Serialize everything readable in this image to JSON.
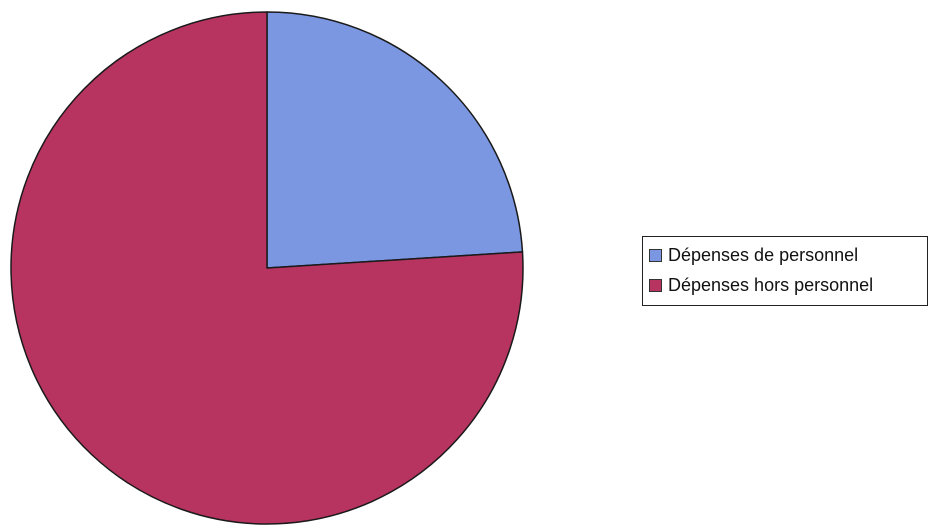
{
  "chart_data": {
    "type": "pie",
    "title": "",
    "start_angle_deg": 90,
    "direction": "clockwise",
    "slices": [
      {
        "label": "Dépenses de personnel",
        "value": 24,
        "color": "#7b97e2"
      },
      {
        "label": "Dépenses hors personnel",
        "value": 76,
        "color": "#b83460"
      }
    ],
    "legend_position": "right",
    "legend": [
      {
        "label": "Dépenses de personnel",
        "color": "#7b97e2"
      },
      {
        "label": "Dépenses hors personnel",
        "color": "#b83460"
      }
    ]
  }
}
